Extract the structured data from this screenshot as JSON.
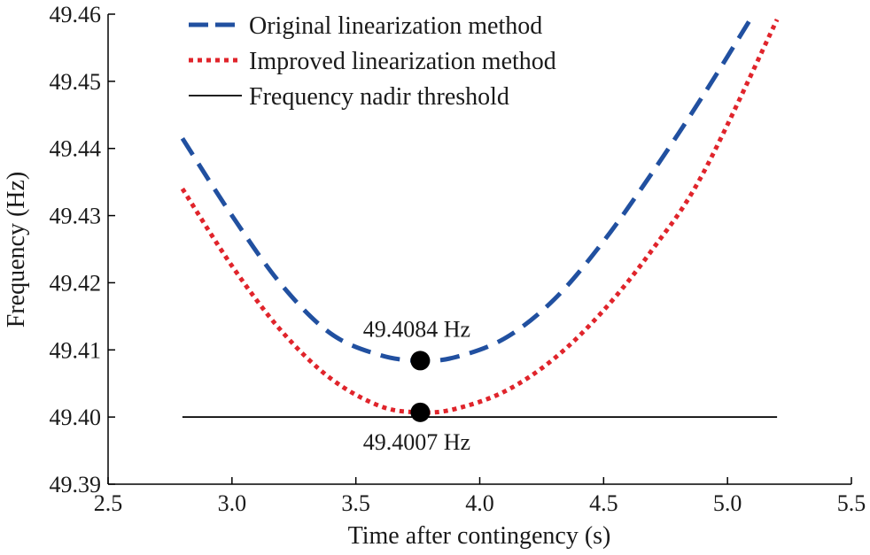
{
  "chart_data": {
    "type": "line",
    "title": "",
    "xlabel": "Time after contingency (s)",
    "ylabel": "Frequency (Hz)",
    "xlim": [
      2.5,
      5.5
    ],
    "ylim": [
      49.39,
      49.46
    ],
    "x_ticks": [
      2.5,
      3.0,
      3.5,
      4.0,
      4.5,
      5.0,
      5.5
    ],
    "x_tick_labels": [
      "2.5",
      "3.0",
      "3.5",
      "4.0",
      "4.5",
      "5.0",
      "5.5"
    ],
    "y_ticks": [
      49.39,
      49.4,
      49.41,
      49.42,
      49.43,
      49.44,
      49.45,
      49.46
    ],
    "y_tick_labels": [
      "49.39",
      "49.40",
      "49.41",
      "49.42",
      "49.43",
      "49.44",
      "49.45",
      "49.46"
    ],
    "grid": false,
    "legend_position": "top-left",
    "series": [
      {
        "name": "Original linearization method",
        "color": "#2150a0",
        "style": "dashed",
        "x": [
          2.8,
          3.0,
          3.2,
          3.4,
          3.6,
          3.76,
          3.9,
          4.1,
          4.3,
          4.5,
          4.7,
          4.9,
          5.1
        ],
        "y": [
          49.4415,
          49.43,
          49.4197,
          49.4124,
          49.4092,
          49.4084,
          49.4089,
          49.4117,
          49.4175,
          49.4262,
          49.4366,
          49.4478,
          49.4597
        ]
      },
      {
        "name": "Improved linearization method",
        "color": "#e0242b",
        "style": "dotted",
        "x": [
          2.8,
          3.0,
          3.2,
          3.4,
          3.6,
          3.76,
          3.9,
          4.1,
          4.3,
          4.5,
          4.7,
          4.9,
          5.2
        ],
        "y": [
          49.434,
          49.4225,
          49.4128,
          49.4057,
          49.4016,
          49.4007,
          49.4012,
          49.4038,
          49.4087,
          49.4159,
          49.4251,
          49.4362,
          49.4592
        ]
      },
      {
        "name": "Frequency nadir threshold",
        "color": "#000000",
        "style": "solid",
        "x": [
          2.8,
          5.2
        ],
        "y": [
          49.4,
          49.4
        ]
      }
    ],
    "annotations": [
      {
        "text": "49.4084 Hz",
        "x": 3.76,
        "y": 49.4084,
        "placement": "above"
      },
      {
        "text": "49.4007 Hz",
        "x": 3.76,
        "y": 49.4007,
        "placement": "below"
      }
    ]
  }
}
